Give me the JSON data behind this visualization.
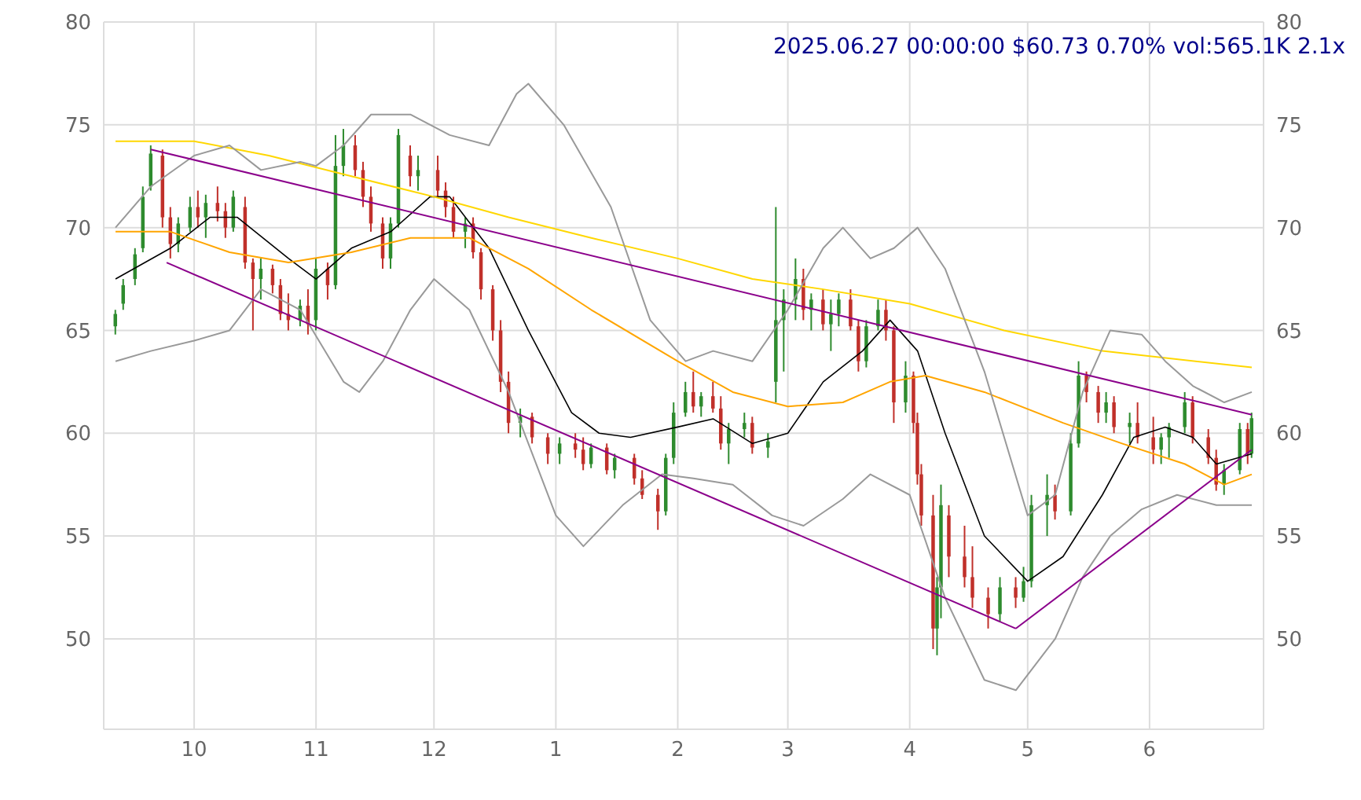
{
  "chart_data": {
    "type": "candlestick",
    "title": "2025.06.27 00:00:00 $60.73 0.70% vol:565.1K 2.1x",
    "xlim": [
      "2024-09-08",
      "2025-06-30"
    ],
    "xticks": [
      {
        "value": "2024-10-01",
        "label": "10"
      },
      {
        "value": "2024-11-01",
        "label": "11"
      },
      {
        "value": "2024-12-01",
        "label": "12"
      },
      {
        "value": "2025-01-01",
        "label": "1"
      },
      {
        "value": "2025-02-01",
        "label": "2"
      },
      {
        "value": "2025-03-01",
        "label": "3"
      },
      {
        "value": "2025-04-01",
        "label": "4"
      },
      {
        "value": "2025-05-01",
        "label": "5"
      },
      {
        "value": "2025-06-01",
        "label": "6"
      }
    ],
    "ylim": [
      45.6,
      80
    ],
    "yticks": [
      50,
      55,
      60,
      65,
      70,
      75,
      80
    ],
    "y2lim": [
      45.6,
      80
    ],
    "y2ticks": [
      50,
      55,
      60,
      65,
      70,
      75,
      80
    ],
    "grid": true,
    "colors": [
      "#2e8b2e",
      "#2e8b2e",
      "#2e8b2e",
      "#2e8b2e",
      "#2e8b2e",
      "#c0302a",
      "#c0302a",
      "#2e8b2e",
      "#2e8b2e",
      "#c0302a",
      "#2e8b2e",
      "#c0302a",
      "#c0302a",
      "#2e8b2e",
      "#c0302a",
      "#c0302a",
      "#2e8b2e",
      "#c0302a",
      "#c0302a",
      "#c0302a",
      "#2e8b2e",
      "#c0302a",
      "#2e8b2e",
      "#c0302a",
      "#2e8b2e",
      "#2e8b2e",
      "#c0302a",
      "#c0302a",
      "#c0302a",
      "#c0302a",
      "#2e8b2e",
      "#2e8b2e",
      "#c0302a",
      "#2e8b2e",
      "#c0302a",
      "#c0302a",
      "#c0302a",
      "#2e8b2e",
      "#c0302a",
      "#c0302a",
      "#c0302a",
      "#c0302a",
      "#c0302a",
      "#2e8b2e",
      "#c0302a",
      "#c0302a",
      "#2e8b2e",
      "#c0302a",
      "#c0302a",
      "#2e8b2e",
      "#c0302a",
      "#2e8b2e",
      "#c0302a",
      "#c0302a",
      "#c0302a",
      "#2e8b2e",
      "#2e8b2e",
      "#2e8b2e",
      "#c0302a",
      "#2e8b2e",
      "#c0302a",
      "#c0302a",
      "#2e8b2e",
      "#2e8b2e",
      "#c0302a",
      "#2e8b2e",
      "#2e8b2e",
      "#2e8b2e",
      "#2e8b2e",
      "#c0302a",
      "#2e8b2e",
      "#c0302a",
      "#2e8b2e",
      "#2e8b2e",
      "#c0302a",
      "#c0302a",
      "#2e8b2e",
      "#2e8b2e",
      "#c0302a",
      "#c0302a",
      "#2e8b2e",
      "#c0302a",
      "#c0302a",
      "#c0302a",
      "#c0302a",
      "#2e8b2e",
      "#2e8b2e",
      "#c0302a",
      "#c0302a",
      "#c0302a",
      "#c0302a",
      "#2e8b2e",
      "#c0302a",
      "#2e8b2e",
      "#2e8b2e",
      "#2e8b2e",
      "#c0302a",
      "#2e8b2e",
      "#2e8b2e",
      "#c0302a",
      "#c0302a",
      "#2e8b2e",
      "#c0302a",
      "#2e8b2e",
      "#c0302a",
      "#c0302a",
      "#2e8b2e",
      "#2e8b2e",
      "#2e8b2e",
      "#c0302a",
      "#c0302a",
      "#c0302a",
      "#2e8b2e",
      "#2e8b2e",
      "#c0302a",
      "#2e8b2e"
    ],
    "x": [
      "2024-09-11",
      "2024-09-13",
      "2024-09-16",
      "2024-09-18",
      "2024-09-20",
      "2024-09-23",
      "2024-09-25",
      "2024-09-27",
      "2024-09-30",
      "2024-10-02",
      "2024-10-04",
      "2024-10-07",
      "2024-10-09",
      "2024-10-11",
      "2024-10-14",
      "2024-10-16",
      "2024-10-18",
      "2024-10-21",
      "2024-10-23",
      "2024-10-25",
      "2024-10-28",
      "2024-10-30",
      "2024-11-01",
      "2024-11-04",
      "2024-11-06",
      "2024-11-08",
      "2024-11-11",
      "2024-11-13",
      "2024-11-15",
      "2024-11-18",
      "2024-11-20",
      "2024-11-22",
      "2024-11-25",
      "2024-11-27",
      "2024-12-02",
      "2024-12-04",
      "2024-12-06",
      "2024-12-09",
      "2024-12-11",
      "2024-12-13",
      "2024-12-16",
      "2024-12-18",
      "2024-12-20",
      "2024-12-23",
      "2024-12-26",
      "2024-12-30",
      "2025-01-02",
      "2025-01-06",
      "2025-01-08",
      "2025-01-10",
      "2025-01-14",
      "2025-01-16",
      "2025-01-21",
      "2025-01-23",
      "2025-01-27",
      "2025-01-29",
      "2025-01-31",
      "2025-02-03",
      "2025-02-05",
      "2025-02-07",
      "2025-02-10",
      "2025-02-12",
      "2025-02-14",
      "2025-02-18",
      "2025-02-20",
      "2025-02-24",
      "2025-02-26",
      "2025-02-28",
      "2025-03-03",
      "2025-03-05",
      "2025-03-07",
      "2025-03-10",
      "2025-03-12",
      "2025-03-14",
      "2025-03-17",
      "2025-03-19",
      "2025-03-21",
      "2025-03-24",
      "2025-03-26",
      "2025-03-28",
      "2025-03-31",
      "2025-04-02",
      "2025-04-03",
      "2025-04-04",
      "2025-04-07",
      "2025-04-08",
      "2025-04-09",
      "2025-04-11",
      "2025-04-15",
      "2025-04-17",
      "2025-04-21",
      "2025-04-24",
      "2025-04-28",
      "2025-04-30",
      "2025-05-02",
      "2025-05-06",
      "2025-05-08",
      "2025-05-12",
      "2025-05-14",
      "2025-05-16",
      "2025-05-19",
      "2025-05-21",
      "2025-05-23",
      "2025-05-27",
      "2025-05-29",
      "2025-06-02",
      "2025-06-04",
      "2025-06-06",
      "2025-06-10",
      "2025-06-12",
      "2025-06-16",
      "2025-06-18",
      "2025-06-20",
      "2025-06-24",
      "2025-06-26",
      "2025-06-27"
    ],
    "ohlc": [
      [
        65.2,
        66,
        64.8,
        65.8
      ],
      [
        66.3,
        67.5,
        66,
        67.2
      ],
      [
        67.5,
        69,
        67.2,
        68.7
      ],
      [
        69,
        72,
        68.8,
        71.5
      ],
      [
        72,
        74,
        71.8,
        73.6
      ],
      [
        73.5,
        73.8,
        70,
        70.5
      ],
      [
        70.5,
        71,
        68.5,
        69.2
      ],
      [
        69.2,
        70.5,
        68.8,
        70.2
      ],
      [
        70,
        71.5,
        69.8,
        71
      ],
      [
        71,
        71.8,
        70,
        70.5
      ],
      [
        70.5,
        71.6,
        69.5,
        71.2
      ],
      [
        71.2,
        72,
        70.3,
        70.8
      ],
      [
        70.8,
        71.2,
        69.5,
        70
      ],
      [
        70,
        71.8,
        69.8,
        71.5
      ],
      [
        71,
        71.5,
        68,
        68.3
      ],
      [
        68.3,
        68.5,
        65,
        67.5
      ],
      [
        67.5,
        68.5,
        66.5,
        68
      ],
      [
        68,
        68.2,
        66.8,
        67.2
      ],
      [
        67.2,
        67.5,
        65.5,
        65.8
      ],
      [
        65.8,
        66.8,
        65,
        65.5
      ],
      [
        65.5,
        66.5,
        65.2,
        66.2
      ],
      [
        66.2,
        67,
        64.8,
        65.3
      ],
      [
        65.5,
        68.5,
        65,
        68
      ],
      [
        68,
        68.3,
        66.5,
        67.2
      ],
      [
        67.2,
        74.5,
        67,
        73
      ],
      [
        73,
        74.8,
        72.5,
        74
      ],
      [
        74,
        74.5,
        72.5,
        72.8
      ],
      [
        72.8,
        73.2,
        71,
        71.5
      ],
      [
        71.5,
        72,
        69.8,
        70.2
      ],
      [
        70.2,
        70.5,
        68,
        68.5
      ],
      [
        68.5,
        70.5,
        68,
        70.2
      ],
      [
        70.2,
        74.8,
        70,
        74.5
      ],
      [
        73.5,
        74,
        72,
        72.5
      ],
      [
        72.5,
        73.5,
        71.8,
        72.8
      ],
      [
        72.8,
        73.5,
        71.5,
        71.8
      ],
      [
        71.8,
        72.2,
        70.5,
        71
      ],
      [
        71,
        71.5,
        69.5,
        69.8
      ],
      [
        69.8,
        70.5,
        69,
        70.2
      ],
      [
        70.2,
        70.5,
        68.5,
        68.8
      ],
      [
        68.8,
        69,
        66.5,
        67
      ],
      [
        67,
        67.2,
        64.5,
        65
      ],
      [
        65,
        65.5,
        62,
        62.5
      ],
      [
        62.5,
        63,
        60,
        60.5
      ],
      [
        60.5,
        61.2,
        59.8,
        60.8
      ],
      [
        60.8,
        61,
        59.5,
        59.8
      ],
      [
        59.8,
        60,
        58.5,
        59
      ],
      [
        59,
        59.8,
        58.5,
        59.5
      ],
      [
        59.5,
        60,
        58.8,
        59.2
      ],
      [
        59.2,
        59.8,
        58.2,
        58.5
      ],
      [
        58.5,
        59.5,
        58.3,
        59.3
      ],
      [
        59.3,
        59.5,
        58,
        58.2
      ],
      [
        58.2,
        59,
        57.8,
        58.8
      ],
      [
        58.8,
        59,
        57.5,
        57.8
      ],
      [
        57.8,
        58.2,
        56.8,
        57
      ],
      [
        57,
        57.3,
        55.3,
        56.2
      ],
      [
        56.2,
        59,
        56,
        58.8
      ],
      [
        58.8,
        61.5,
        58.5,
        61
      ],
      [
        61,
        62.5,
        60.8,
        62
      ],
      [
        62,
        63,
        61,
        61.3
      ],
      [
        61.3,
        62,
        60.8,
        61.8
      ],
      [
        61.8,
        62.5,
        61,
        61.2
      ],
      [
        61.2,
        61.8,
        59.2,
        59.5
      ],
      [
        59.5,
        60.5,
        58.5,
        60.2
      ],
      [
        60.2,
        61,
        59.8,
        60.5
      ],
      [
        60.5,
        60.8,
        59,
        59.3
      ],
      [
        59.3,
        60,
        58.8,
        59.6
      ],
      [
        62.5,
        71,
        61.5,
        65.5
      ],
      [
        65.5,
        67,
        63,
        66.5
      ],
      [
        66.5,
        68.5,
        65.5,
        67.5
      ],
      [
        67.5,
        68,
        65.5,
        66
      ],
      [
        66,
        66.8,
        65,
        66.5
      ],
      [
        66.5,
        67,
        65,
        65.3
      ],
      [
        65.3,
        66.5,
        64,
        65.8
      ],
      [
        65.8,
        66.8,
        65.2,
        66.5
      ],
      [
        66.5,
        67,
        65,
        65.2
      ],
      [
        65.2,
        65.5,
        63,
        63.5
      ],
      [
        63.5,
        65.5,
        63.2,
        65.2
      ],
      [
        65.2,
        66.5,
        65,
        66
      ],
      [
        66,
        66.5,
        64.5,
        65
      ],
      [
        65,
        65.2,
        60.5,
        61.5
      ],
      [
        61.5,
        63.5,
        61,
        62.8
      ],
      [
        62.8,
        63,
        60,
        60.5
      ],
      [
        60.5,
        61,
        57.5,
        58
      ],
      [
        58,
        58.5,
        55.5,
        56
      ],
      [
        56,
        57,
        49.5,
        50.5
      ],
      [
        50.5,
        53,
        49.2,
        52.5
      ],
      [
        52.5,
        57.5,
        51,
        56.5
      ],
      [
        56,
        56.5,
        53,
        54
      ],
      [
        54,
        55.5,
        52.5,
        53
      ],
      [
        53,
        54.5,
        51.5,
        52
      ],
      [
        52,
        52.5,
        50.5,
        51.2
      ],
      [
        51.2,
        53,
        50.8,
        52.5
      ],
      [
        52.5,
        53,
        51.5,
        52
      ],
      [
        52,
        53.5,
        51.8,
        52.8
      ],
      [
        52.8,
        57,
        52.5,
        56.5
      ],
      [
        56.5,
        58,
        55,
        57
      ],
      [
        57,
        57.5,
        55.8,
        56.2
      ],
      [
        56.2,
        60,
        56,
        59.5
      ],
      [
        59.5,
        63.5,
        59.3,
        62.8
      ],
      [
        62.8,
        63,
        61.5,
        62
      ],
      [
        62,
        62.3,
        60.5,
        61
      ],
      [
        61,
        62,
        60.5,
        61.5
      ],
      [
        61.5,
        61.8,
        60,
        60.3
      ],
      [
        60.3,
        61,
        59.5,
        60.5
      ],
      [
        60.5,
        61.5,
        59.5,
        59.8
      ],
      [
        59.8,
        60.8,
        58.5,
        59.2
      ],
      [
        59.2,
        60,
        58.5,
        59.8
      ],
      [
        59.8,
        60.5,
        58.8,
        60.3
      ],
      [
        60.3,
        62,
        60,
        61.5
      ],
      [
        61.5,
        61.8,
        59.5,
        59.8
      ],
      [
        59.8,
        60.2,
        58.5,
        58.8
      ],
      [
        58.8,
        59.2,
        57.2,
        57.5
      ],
      [
        57.5,
        58.5,
        57,
        58.2
      ],
      [
        58.2,
        60.5,
        58,
        60.2
      ],
      [
        60.2,
        60.5,
        58.5,
        59
      ],
      [
        59,
        61,
        58.8,
        60.73
      ]
    ],
    "series": [
      {
        "type": "line",
        "color": "#000000",
        "x": [
          "2024-09-11",
          "2024-09-25",
          "2024-10-05",
          "2024-10-12",
          "2024-10-25",
          "2024-11-01",
          "2024-11-10",
          "2024-11-20",
          "2024-11-30",
          "2024-12-05",
          "2024-12-15",
          "2024-12-25",
          "2025-01-05",
          "2025-01-12",
          "2025-01-20",
          "2025-02-01",
          "2025-02-10",
          "2025-02-20",
          "2025-03-01",
          "2025-03-10",
          "2025-03-20",
          "2025-03-27",
          "2025-04-03",
          "2025-04-10",
          "2025-04-20",
          "2025-05-01",
          "2025-05-10",
          "2025-05-20",
          "2025-05-28",
          "2025-06-05",
          "2025-06-12",
          "2025-06-18",
          "2025-06-27"
        ],
        "values": [
          67.5,
          69,
          70.5,
          70.5,
          68.5,
          67.5,
          69,
          69.8,
          71.5,
          71.5,
          69,
          65,
          61,
          60,
          59.8,
          60.3,
          60.7,
          59.5,
          60,
          62.5,
          64,
          65.5,
          64,
          60,
          55,
          52.8,
          54,
          57,
          59.8,
          60.3,
          59.8,
          58.5,
          59
        ]
      },
      {
        "type": "line",
        "color": "#ffa500",
        "x": [
          "2024-09-11",
          "2024-09-25",
          "2024-10-10",
          "2024-10-25",
          "2024-11-10",
          "2024-11-25",
          "2024-12-10",
          "2024-12-25",
          "2025-01-10",
          "2025-02-01",
          "2025-02-15",
          "2025-03-01",
          "2025-03-15",
          "2025-03-27",
          "2025-04-05",
          "2025-04-20",
          "2025-05-10",
          "2025-05-25",
          "2025-06-10",
          "2025-06-20",
          "2025-06-27"
        ],
        "values": [
          69.8,
          69.8,
          68.8,
          68.3,
          68.8,
          69.5,
          69.5,
          68,
          66,
          63.5,
          62,
          61.3,
          61.5,
          62.5,
          62.8,
          62,
          60.5,
          59.5,
          58.5,
          57.5,
          58
        ]
      },
      {
        "type": "line",
        "color": "#ffd700",
        "x": [
          "2024-09-11",
          "2024-10-01",
          "2024-10-20",
          "2024-11-10",
          "2024-12-01",
          "2024-12-20",
          "2025-01-10",
          "2025-02-01",
          "2025-02-20",
          "2025-03-10",
          "2025-04-01",
          "2025-04-25",
          "2025-05-20",
          "2025-06-27"
        ],
        "values": [
          74.2,
          74.2,
          73.5,
          72.5,
          71.5,
          70.5,
          69.5,
          68.5,
          67.5,
          67,
          66.3,
          65,
          64,
          63.2
        ]
      },
      {
        "type": "line",
        "color": "#999999",
        "x": [
          "2024-09-11",
          "2024-09-20",
          "2024-10-01",
          "2024-10-10",
          "2024-10-18",
          "2024-10-28",
          "2024-11-01",
          "2024-11-08",
          "2024-11-15",
          "2024-11-25",
          "2024-12-05",
          "2024-12-15",
          "2024-12-22",
          "2024-12-25",
          "2025-01-03",
          "2025-01-15",
          "2025-01-25",
          "2025-02-03",
          "2025-02-10",
          "2025-02-20",
          "2025-03-01",
          "2025-03-10",
          "2025-03-15",
          "2025-03-22",
          "2025-03-28",
          "2025-04-03",
          "2025-04-10",
          "2025-04-20",
          "2025-05-01",
          "2025-05-08",
          "2025-05-15",
          "2025-05-22",
          "2025-05-30",
          "2025-06-05",
          "2025-06-12",
          "2025-06-20",
          "2025-06-27"
        ],
        "values": [
          70,
          72,
          73.5,
          74,
          72.8,
          73.2,
          73,
          74,
          75.5,
          75.5,
          74.5,
          74,
          76.5,
          77,
          75,
          71,
          65.5,
          63.5,
          64,
          63.5,
          66,
          69,
          70,
          68.5,
          69,
          70,
          68,
          63,
          56,
          57,
          62,
          65,
          64.8,
          63.5,
          62.3,
          61.5,
          62
        ]
      },
      {
        "type": "line",
        "color": "#999999",
        "x": [
          "2024-09-11",
          "2024-09-20",
          "2024-10-01",
          "2024-10-10",
          "2024-10-18",
          "2024-10-28",
          "2024-11-08",
          "2024-11-12",
          "2024-11-18",
          "2024-11-25",
          "2024-12-01",
          "2024-12-10",
          "2024-12-20",
          "2025-01-01",
          "2025-01-08",
          "2025-01-18",
          "2025-01-28",
          "2025-02-05",
          "2025-02-15",
          "2025-02-25",
          "2025-03-05",
          "2025-03-15",
          "2025-03-22",
          "2025-04-01",
          "2025-04-10",
          "2025-04-20",
          "2025-04-28",
          "2025-05-08",
          "2025-05-15",
          "2025-05-22",
          "2025-05-30",
          "2025-06-08",
          "2025-06-18",
          "2025-06-27"
        ],
        "values": [
          63.5,
          64,
          64.5,
          65,
          67,
          66,
          62.5,
          62,
          63.5,
          66,
          67.5,
          66,
          62,
          56,
          54.5,
          56.5,
          58,
          57.8,
          57.5,
          56,
          55.5,
          56.8,
          58,
          57,
          52,
          48,
          47.5,
          50,
          53,
          55,
          56.3,
          57,
          56.5,
          56.5
        ]
      },
      {
        "type": "line",
        "color": "#8b008b",
        "x": [
          "2024-09-20",
          "2025-06-27"
        ],
        "values": [
          73.8,
          60.9
        ]
      },
      {
        "type": "line",
        "color": "#8b008b",
        "x": [
          "2024-09-24",
          "2025-04-28"
        ],
        "values": [
          68.3,
          50.5
        ]
      },
      {
        "type": "line",
        "color": "#8b008b",
        "x": [
          "2025-04-28",
          "2025-06-27"
        ],
        "values": [
          50.5,
          59.2
        ]
      }
    ]
  }
}
